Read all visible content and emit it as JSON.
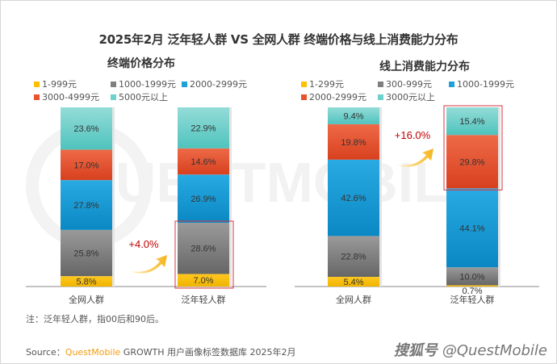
{
  "title": "2025年2月 泛年轻人群 VS 全网人群 终端价格与线上消费能力分布",
  "note": "注：泛年轻人群，指00后和90后。",
  "source": {
    "prefix": "Source：",
    "brand": "QuestMobile",
    "rest": " GROWTH 用户画像标签数据库 2025年2月"
  },
  "watermark": {
    "icon_text": "搜狐号",
    "text": "@QuestMobile"
  },
  "background_watermark": "QUESTMOBILE",
  "colors": {
    "yellow": "#ffc000",
    "gray": "#7f7f7f",
    "blue": "#1ea1d9",
    "red": "#e8542e",
    "teal": "#6dd1cc",
    "highlight": "#d9363e",
    "arrow": "#f5b41a",
    "delta": "#c00000"
  },
  "chart_data": [
    {
      "type": "bar",
      "stacked": true,
      "title": "终端价格分布",
      "categories": [
        "全网人群",
        "泛年轻人群"
      ],
      "series": [
        {
          "name": "1-999元",
          "color_key": "yellow",
          "values": [
            5.8,
            7.0
          ]
        },
        {
          "name": "1000-1999元",
          "color_key": "gray",
          "values": [
            25.8,
            28.6
          ]
        },
        {
          "name": "2000-2999元",
          "color_key": "blue",
          "values": [
            27.8,
            26.9
          ]
        },
        {
          "name": "3000-4999元",
          "color_key": "red",
          "values": [
            17.0,
            14.6
          ]
        },
        {
          "name": "5000元以上",
          "color_key": "teal",
          "values": [
            23.6,
            22.9
          ]
        }
      ],
      "labels": [
        [
          "5.8%",
          "25.8%",
          "27.8%",
          "17.0%",
          "23.6%"
        ],
        [
          "7.0%",
          "28.6%",
          "26.9%",
          "14.6%",
          "22.9%"
        ]
      ],
      "ylim": [
        0,
        100
      ],
      "legend_position": "top",
      "annotation": {
        "text": "+4.0%",
        "highlight_category": 1,
        "highlight_series": [
          0,
          1
        ]
      }
    },
    {
      "type": "bar",
      "stacked": true,
      "title": "线上消费能力分布",
      "categories": [
        "全网人群",
        "泛年轻人群"
      ],
      "series": [
        {
          "name": "1-299元",
          "color_key": "yellow",
          "values": [
            5.4,
            0.7
          ]
        },
        {
          "name": "300-999元",
          "color_key": "gray",
          "values": [
            22.8,
            10.0
          ]
        },
        {
          "name": "1000-1999元",
          "color_key": "blue",
          "values": [
            42.6,
            44.1
          ]
        },
        {
          "name": "2000-2999元",
          "color_key": "red",
          "values": [
            19.8,
            29.8
          ]
        },
        {
          "name": "3000元以上",
          "color_key": "teal",
          "values": [
            9.4,
            15.4
          ]
        }
      ],
      "labels": [
        [
          "5.4%",
          "22.8%",
          "42.6%",
          "19.8%",
          "9.4%"
        ],
        [
          "0.7%",
          "10.0%",
          "44.1%",
          "29.8%",
          "15.4%"
        ]
      ],
      "ylim": [
        0,
        100
      ],
      "legend_position": "top",
      "annotation": {
        "text": "+16.0%",
        "highlight_category": 1,
        "highlight_series": [
          3,
          4
        ]
      }
    }
  ]
}
